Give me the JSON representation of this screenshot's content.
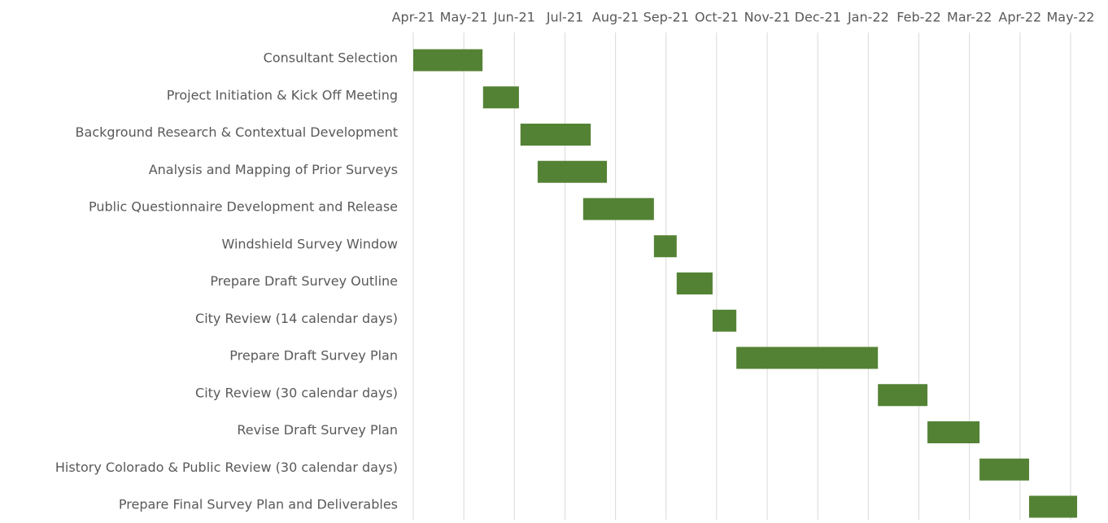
{
  "chart_data": {
    "type": "gantt",
    "categories": [
      "Consultant Selection",
      "Project Initiation & Kick Off Meeting",
      "Background Research & Contextual Development",
      "Analysis and Mapping of Prior Surveys",
      "Public Questionnaire Development and Release",
      "Windshield Survey Window",
      "Prepare Draft Survey Outline",
      "City Review (14 calendar days)",
      "Prepare Draft Survey Plan",
      "City Review (30 calendar days)",
      "Revise Draft Survey Plan",
      "History Colorado & Public Review (30 calendar days)",
      "Prepare Final Survey Plan and Deliverables"
    ],
    "start": [
      0,
      1.38,
      2.12,
      2.46,
      3.36,
      4.76,
      5.21,
      5.92,
      6.39,
      9.19,
      10.17,
      11.2,
      12.18
    ],
    "end": [
      1.37,
      2.09,
      3.51,
      3.83,
      4.76,
      5.21,
      5.92,
      6.39,
      9.19,
      10.17,
      11.2,
      12.18,
      13.13
    ],
    "color": "#548235",
    "xlim": [
      0,
      13.2
    ],
    "xticks": [
      {
        "value": 0,
        "label": "Apr-21"
      },
      {
        "value": 1,
        "label": "May-21"
      },
      {
        "value": 2,
        "label": "Jun-21"
      },
      {
        "value": 3,
        "label": "Jul-21"
      },
      {
        "value": 4,
        "label": "Aug-21"
      },
      {
        "value": 5,
        "label": "Sep-21"
      },
      {
        "value": 6,
        "label": "Oct-21"
      },
      {
        "value": 7,
        "label": "Nov-21"
      },
      {
        "value": 8,
        "label": "Dec-21"
      },
      {
        "value": 9,
        "label": "Jan-22"
      },
      {
        "value": 10,
        "label": "Feb-22"
      },
      {
        "value": 11,
        "label": "Mar-22"
      },
      {
        "value": 12,
        "label": "Apr-22"
      },
      {
        "value": 13,
        "label": "May-22"
      }
    ],
    "grid": true
  }
}
